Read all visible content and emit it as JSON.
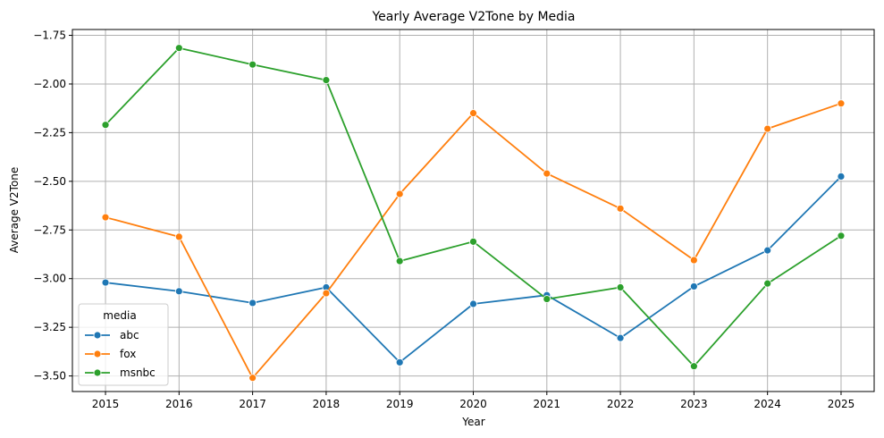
{
  "chart_data": {
    "type": "line",
    "title": "Yearly Average V2Tone by Media",
    "xlabel": "Year",
    "ylabel": "Average V2Tone",
    "x": [
      2015,
      2016,
      2017,
      2018,
      2019,
      2020,
      2021,
      2022,
      2023,
      2024,
      2025
    ],
    "x_tick_labels": [
      "2015",
      "2016",
      "2017",
      "2018",
      "2019",
      "2020",
      "2021",
      "2022",
      "2023",
      "2024",
      "2025"
    ],
    "y_ticks": [
      -1.75,
      -2.0,
      -2.25,
      -2.5,
      -2.75,
      -3.0,
      -3.25,
      -3.5
    ],
    "y_tick_labels": [
      "−1.75",
      "−2.00",
      "−2.25",
      "−2.50",
      "−2.75",
      "−3.00",
      "−3.25",
      "−3.50"
    ],
    "ylim": [
      -3.58,
      -1.72
    ],
    "xlim": [
      2014.55,
      2025.45
    ],
    "grid": true,
    "legend": {
      "title": "media",
      "placement": "lower-left"
    },
    "series": [
      {
        "name": "abc",
        "color": "#1f77b4",
        "values": [
          -3.02,
          -3.065,
          -3.125,
          -3.045,
          -3.43,
          -3.13,
          -3.085,
          -3.305,
          -3.04,
          -2.855,
          -2.475
        ]
      },
      {
        "name": "fox",
        "color": "#ff7f0e",
        "values": [
          -2.685,
          -2.785,
          -3.51,
          -3.075,
          -2.565,
          -2.15,
          -2.46,
          -2.64,
          -2.905,
          -2.23,
          -2.1
        ]
      },
      {
        "name": "msnbc",
        "color": "#2ca02c",
        "values": [
          -2.21,
          -1.815,
          -1.9,
          -1.98,
          -2.91,
          -2.81,
          -3.105,
          -3.045,
          -3.45,
          -3.025,
          -2.78
        ]
      }
    ]
  }
}
